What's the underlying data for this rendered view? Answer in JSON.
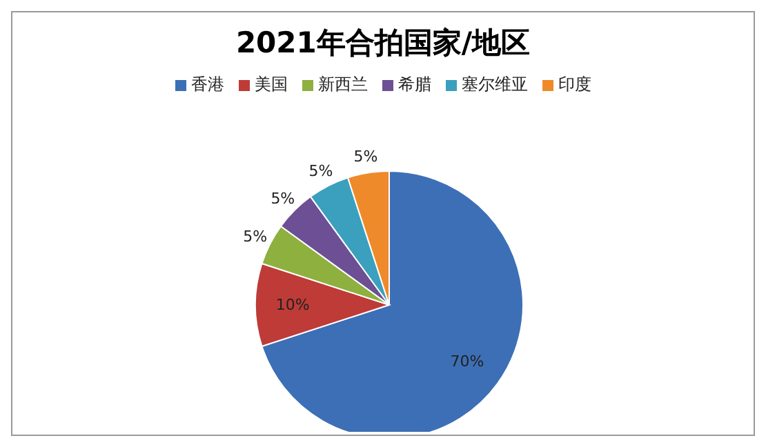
{
  "chart_data": {
    "type": "pie",
    "title": "2021年合拍国家/地区",
    "categories": [
      "香港",
      "美国",
      "新西兰",
      "希腊",
      "塞尔维亚",
      "印度"
    ],
    "values": [
      70,
      10,
      5,
      5,
      5,
      5
    ],
    "colors": [
      "#3d6fb6",
      "#be3b37",
      "#8eb03f",
      "#6c4f94",
      "#3aa0bd",
      "#ef8a2a"
    ],
    "value_labels": [
      "70%",
      "10%",
      "5%",
      "5%",
      "5%",
      "5%"
    ],
    "legend": "top"
  }
}
